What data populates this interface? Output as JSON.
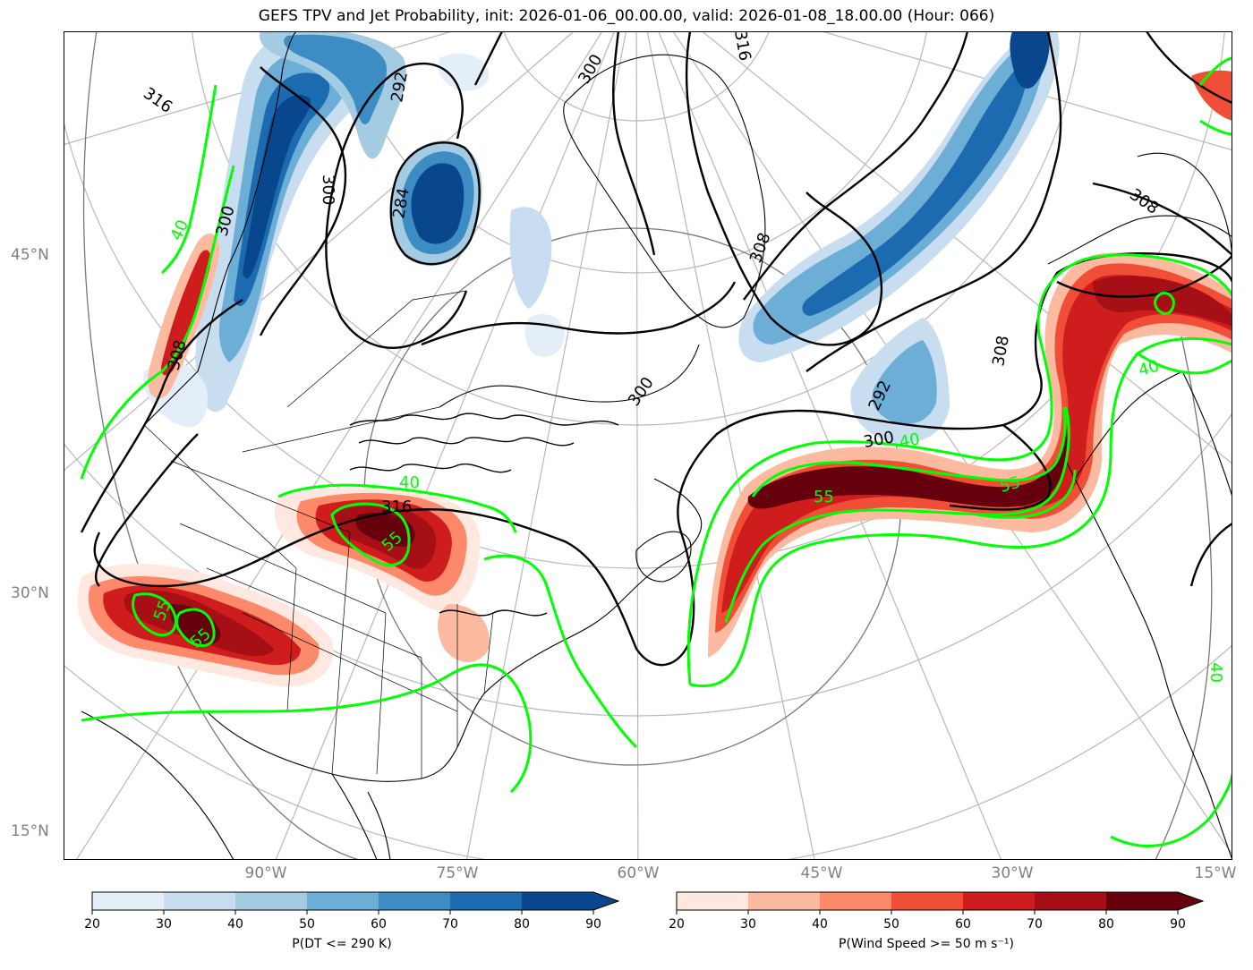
{
  "title": "GEFS TPV and Jet Probability, init: 2026-01-06_00.00.00, valid: 2026-01-08_18.00.00 (Hour: 066)",
  "lat_labels": [
    "45°N",
    "30°N",
    "15°N"
  ],
  "lon_labels": [
    "90°W",
    "75°W",
    "60°W",
    "45°W",
    "30°W",
    "15°W"
  ],
  "contour_labels": {
    "theta": [
      "316",
      "308",
      "300",
      "292",
      "284",
      "300",
      "316",
      "308",
      "300",
      "300",
      "292",
      "300",
      "308",
      "308",
      "316"
    ],
    "wind": [
      "40",
      "40",
      "55",
      "55",
      "55",
      "55",
      "40",
      "55",
      "40",
      "40"
    ]
  },
  "colorbar_dt": {
    "label": "P(DT <= 290 K)",
    "ticks": [
      "20",
      "30",
      "40",
      "50",
      "60",
      "70",
      "80",
      "90"
    ],
    "colors": [
      "#e3eef9",
      "#c9ddf0",
      "#a3cce3",
      "#6caed6",
      "#3d8dc4",
      "#1c6aaf",
      "#08478d"
    ]
  },
  "colorbar_wind": {
    "label": "P(Wind Speed >= 50 m s⁻¹)",
    "ticks": [
      "20",
      "30",
      "40",
      "50",
      "60",
      "70",
      "80",
      "90"
    ],
    "colors": [
      "#fee8df",
      "#fcbba1",
      "#fc8a6a",
      "#f14e37",
      "#cf1c1d",
      "#a50f15",
      "#67000d"
    ]
  },
  "colors": {
    "theta_contour": "#000000",
    "wind_contour": "#00ff00",
    "coastline": "#000000",
    "graticule": "#b0b0b0"
  }
}
